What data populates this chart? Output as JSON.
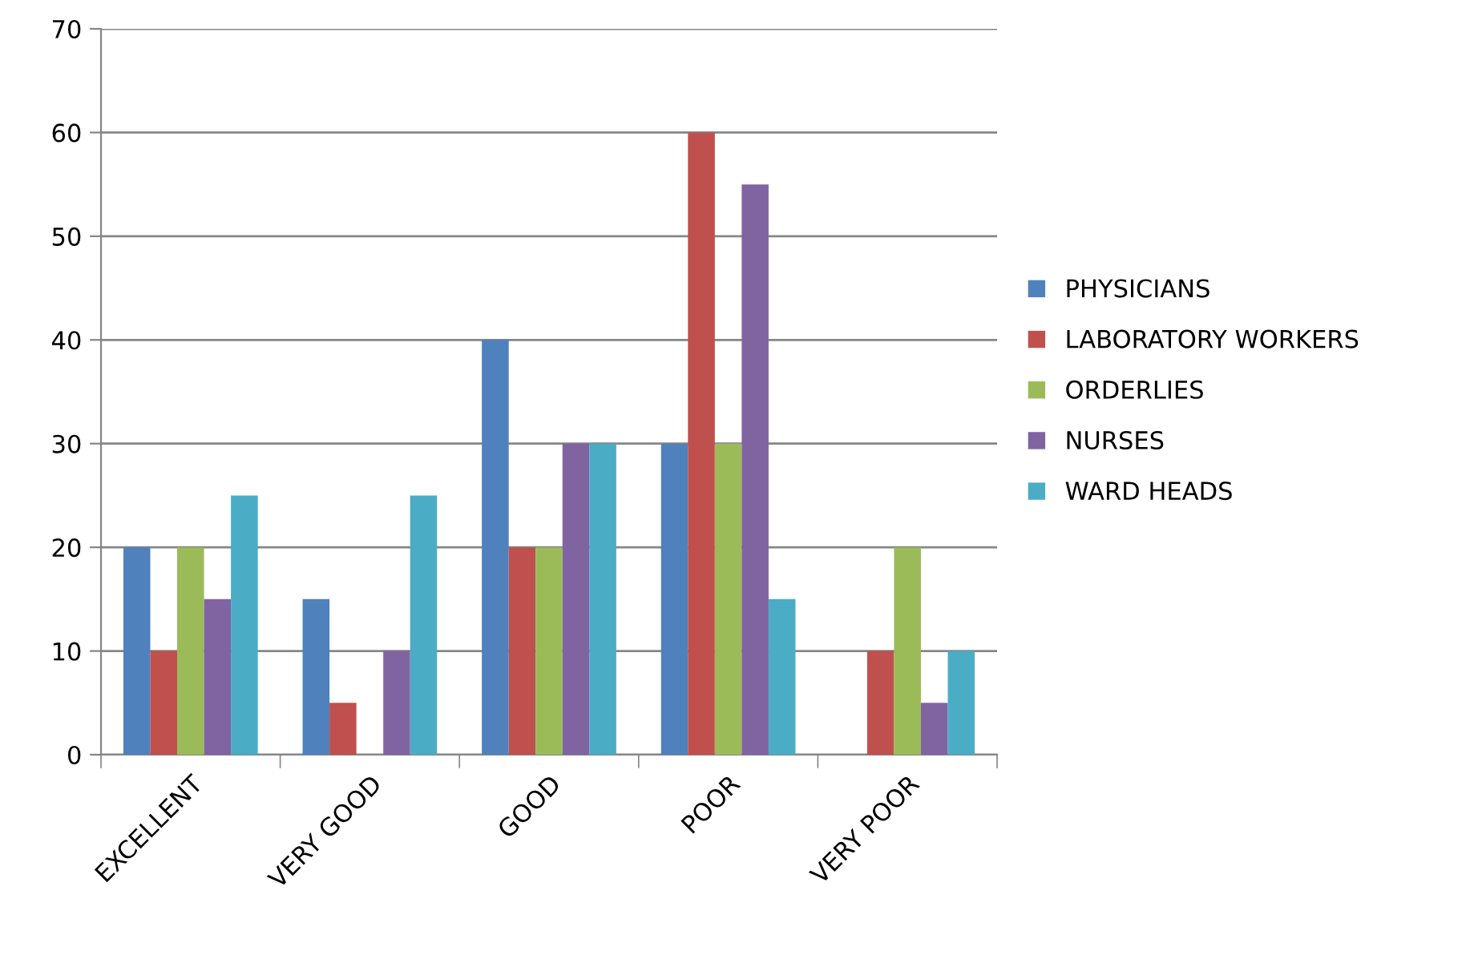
{
  "chart_data": {
    "type": "bar",
    "categories": [
      "EXCELLENT",
      "VERY GOOD",
      "GOOD",
      "POOR",
      "VERY POOR"
    ],
    "series": [
      {
        "name": "PHYSICIANS",
        "color": "#4f81bd",
        "values": [
          20,
          15,
          40,
          30,
          0
        ]
      },
      {
        "name": "LABORATORY WORKERS",
        "color": "#c0504d",
        "values": [
          10,
          5,
          20,
          60,
          10
        ]
      },
      {
        "name": "ORDERLIES",
        "color": "#9bbb59",
        "values": [
          20,
          0,
          20,
          30,
          20
        ]
      },
      {
        "name": "NURSES",
        "color": "#8064a2",
        "values": [
          15,
          10,
          30,
          55,
          5
        ]
      },
      {
        "name": "WARD HEADS",
        "color": "#4bacc6",
        "values": [
          25,
          25,
          30,
          15,
          10
        ]
      }
    ],
    "ylim": [
      0,
      70
    ],
    "yticks": [
      0,
      10,
      20,
      30,
      40,
      50,
      60,
      70
    ],
    "grid": "y",
    "legend": "right"
  }
}
